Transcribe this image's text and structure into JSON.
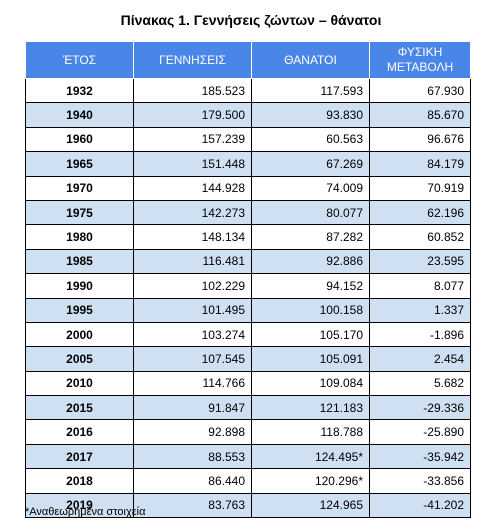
{
  "title": "Πίνακας 1. Γεννήσεις ζώντων – θάνατοι",
  "headers": [
    "ΈΤΟΣ",
    "ΓΕΝΝΗΣΕΙΣ",
    "ΘΑΝΑΤΟΙ",
    "ΦΥΣΙΚΗ ΜΕΤΑΒΟΛΗ"
  ],
  "rows": [
    [
      "1932",
      "185.523",
      "117.593",
      "67.930"
    ],
    [
      "1940",
      "179.500",
      "93.830",
      "85.670"
    ],
    [
      "1960",
      "157.239",
      "60.563",
      "96.676"
    ],
    [
      "1965",
      "151.448",
      "67.269",
      "84.179"
    ],
    [
      "1970",
      "144.928",
      "74.009",
      "70.919"
    ],
    [
      "1975",
      "142.273",
      "80.077",
      "62.196"
    ],
    [
      "1980",
      "148.134",
      "87.282",
      "60.852"
    ],
    [
      "1985",
      "116.481",
      "92.886",
      "23.595"
    ],
    [
      "1990",
      "102.229",
      "94.152",
      "8.077"
    ],
    [
      "1995",
      "101.495",
      "100.158",
      "1.337"
    ],
    [
      "2000",
      "103.274",
      "105.170",
      "-1.896"
    ],
    [
      "2005",
      "107.545",
      "105.091",
      "2.454"
    ],
    [
      "2010",
      "114.766",
      "109.084",
      "5.682"
    ],
    [
      "2015",
      "91.847",
      "121.183",
      "-29.336"
    ],
    [
      "2016",
      "92.898",
      "118.788",
      "-25.890"
    ],
    [
      "2017",
      "88.553",
      "124.495*",
      "-35.942"
    ],
    [
      "2018",
      "86.440",
      "120.296*",
      "-33.856"
    ],
    [
      "2019",
      "83.763",
      "124.965",
      "-41.202"
    ]
  ],
  "footnote": "*Αναθεωρημένα στοιχεία",
  "colors": {
    "header_bg": "#4a86e8",
    "stripe_bg": "#cfe0f3"
  }
}
